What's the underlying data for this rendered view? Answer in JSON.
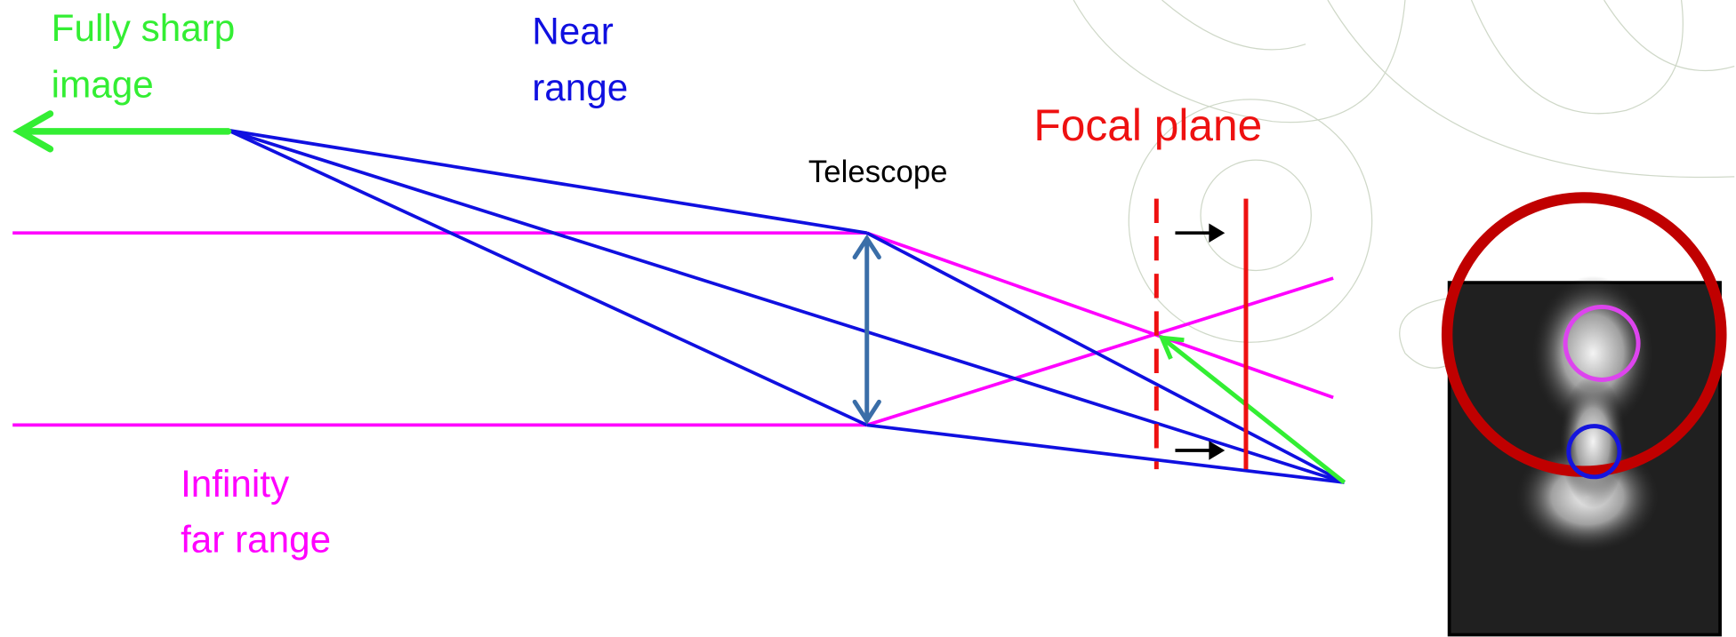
{
  "labels": {
    "sharp_image": [
      "Fully sharp",
      "image"
    ],
    "near_range": [
      "Near",
      "range"
    ],
    "telescope": "Telescope",
    "focal_plane": "Focal plane",
    "far_range": [
      "Infinity",
      "far range"
    ]
  }
}
